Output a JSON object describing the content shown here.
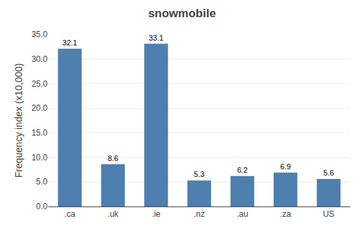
{
  "chart_data": {
    "type": "bar",
    "title": "snowmobile",
    "categories": [
      ".ca",
      ".uk",
      ".ie",
      ".nz",
      ".au",
      ".za",
      "US"
    ],
    "values": [
      32.1,
      8.6,
      33.1,
      5.3,
      6.2,
      6.9,
      5.6
    ],
    "color": "#4d7faf",
    "ylabel": "Frequency index (x10,000)",
    "ylim": [
      0,
      35
    ],
    "yticks": [
      {
        "value": 0.0,
        "label": "0.0"
      },
      {
        "value": 5.0,
        "label": "5.0"
      },
      {
        "value": 10.0,
        "label": "10.0"
      },
      {
        "value": 15.0,
        "label": "15.0"
      },
      {
        "value": 20.0,
        "label": "20.0"
      },
      {
        "value": 25.0,
        "label": "25.0"
      },
      {
        "value": 30.0,
        "label": "30.0"
      },
      {
        "value": 35.0,
        "label": "35.0"
      }
    ],
    "grid": true,
    "data_labels": true
  }
}
